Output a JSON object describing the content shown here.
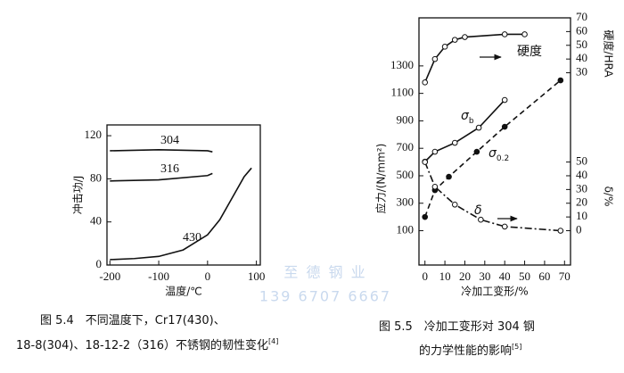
{
  "chart_data": [
    {
      "type": "line",
      "xlabel": "温度/℃",
      "ylabel": "冲击功/J",
      "xlim": [
        -206,
        108
      ],
      "ylim": [
        0,
        130
      ],
      "xticks": [
        -200,
        -100,
        0,
        100
      ],
      "yticks": [
        0,
        40,
        80,
        120
      ],
      "series": [
        {
          "name": "304",
          "color": "#111",
          "x": [
            -200,
            -100,
            0,
            10
          ],
          "values": [
            106,
            107,
            106,
            105
          ]
        },
        {
          "name": "316",
          "color": "#111",
          "x": [
            -200,
            -100,
            0,
            10
          ],
          "values": [
            78,
            79,
            83,
            85
          ]
        },
        {
          "name": "430",
          "color": "#111",
          "x": [
            -200,
            -150,
            -100,
            -50,
            0,
            25,
            50,
            75,
            90
          ],
          "values": [
            5,
            6,
            8,
            14,
            28,
            42,
            62,
            82,
            90
          ]
        }
      ]
    },
    {
      "type": "line",
      "xlabel": "冷加工变形/%",
      "ylabel": "应力/(N/mm²)",
      "y2label": "硬度/HRA",
      "y3label": "δ/%",
      "xlim": [
        -3,
        73
      ],
      "ylim": [
        -150,
        1650
      ],
      "y2lim": [
        -110,
        70
      ],
      "y3lim": [
        -25,
        155
      ],
      "xticks": [
        0,
        10,
        20,
        30,
        40,
        50,
        60,
        70
      ],
      "yticks": [
        100,
        300,
        500,
        700,
        900,
        1100,
        1300
      ],
      "y2ticks": [
        30,
        40,
        50,
        60,
        70
      ],
      "y3ticks": [
        0,
        10,
        20,
        30,
        40,
        50
      ],
      "series": [
        {
          "name": "硬度",
          "axis": "y2",
          "color": "#111",
          "marker": "open",
          "dash": "solid",
          "x": [
            0,
            5,
            10,
            15,
            20,
            40,
            50
          ],
          "values": [
            23,
            40,
            49,
            54,
            56,
            58,
            58
          ]
        },
        {
          "name": "σ",
          "name_sub": "b",
          "axis": "y",
          "color": "#111",
          "marker": "open",
          "dash": "solid",
          "x": [
            0,
            5,
            15,
            27,
            40
          ],
          "values": [
            603,
            675,
            740,
            850,
            1052
          ]
        },
        {
          "name": "σ",
          "name_sub": "0.2",
          "axis": "y",
          "color": "#111",
          "marker": "filled",
          "dash": "dashed",
          "x": [
            0,
            5,
            12,
            26,
            40,
            68
          ],
          "values": [
            200,
            395,
            493,
            675,
            857,
            1195
          ]
        },
        {
          "name": "δ",
          "axis": "y3",
          "color": "#111",
          "marker": "open",
          "dash": "dashdot",
          "x": [
            0,
            5,
            15,
            28,
            40,
            68
          ],
          "values": [
            50,
            32,
            19,
            8,
            3,
            0
          ]
        }
      ]
    }
  ],
  "captions": [
    {
      "lines": [
        "图 5.4　不同温度下，Cr17(430)、",
        "18-8(304)、18-12-2（316）不锈钢的韧性变化"
      ],
      "ref": "[4]"
    },
    {
      "lines": [
        "图 5.5　冷加工变形对 304 钢",
        "的力学性能的影响"
      ],
      "ref": "[5]"
    }
  ],
  "watermark": [
    "至 德 钢 业",
    "139 6707 6667"
  ]
}
